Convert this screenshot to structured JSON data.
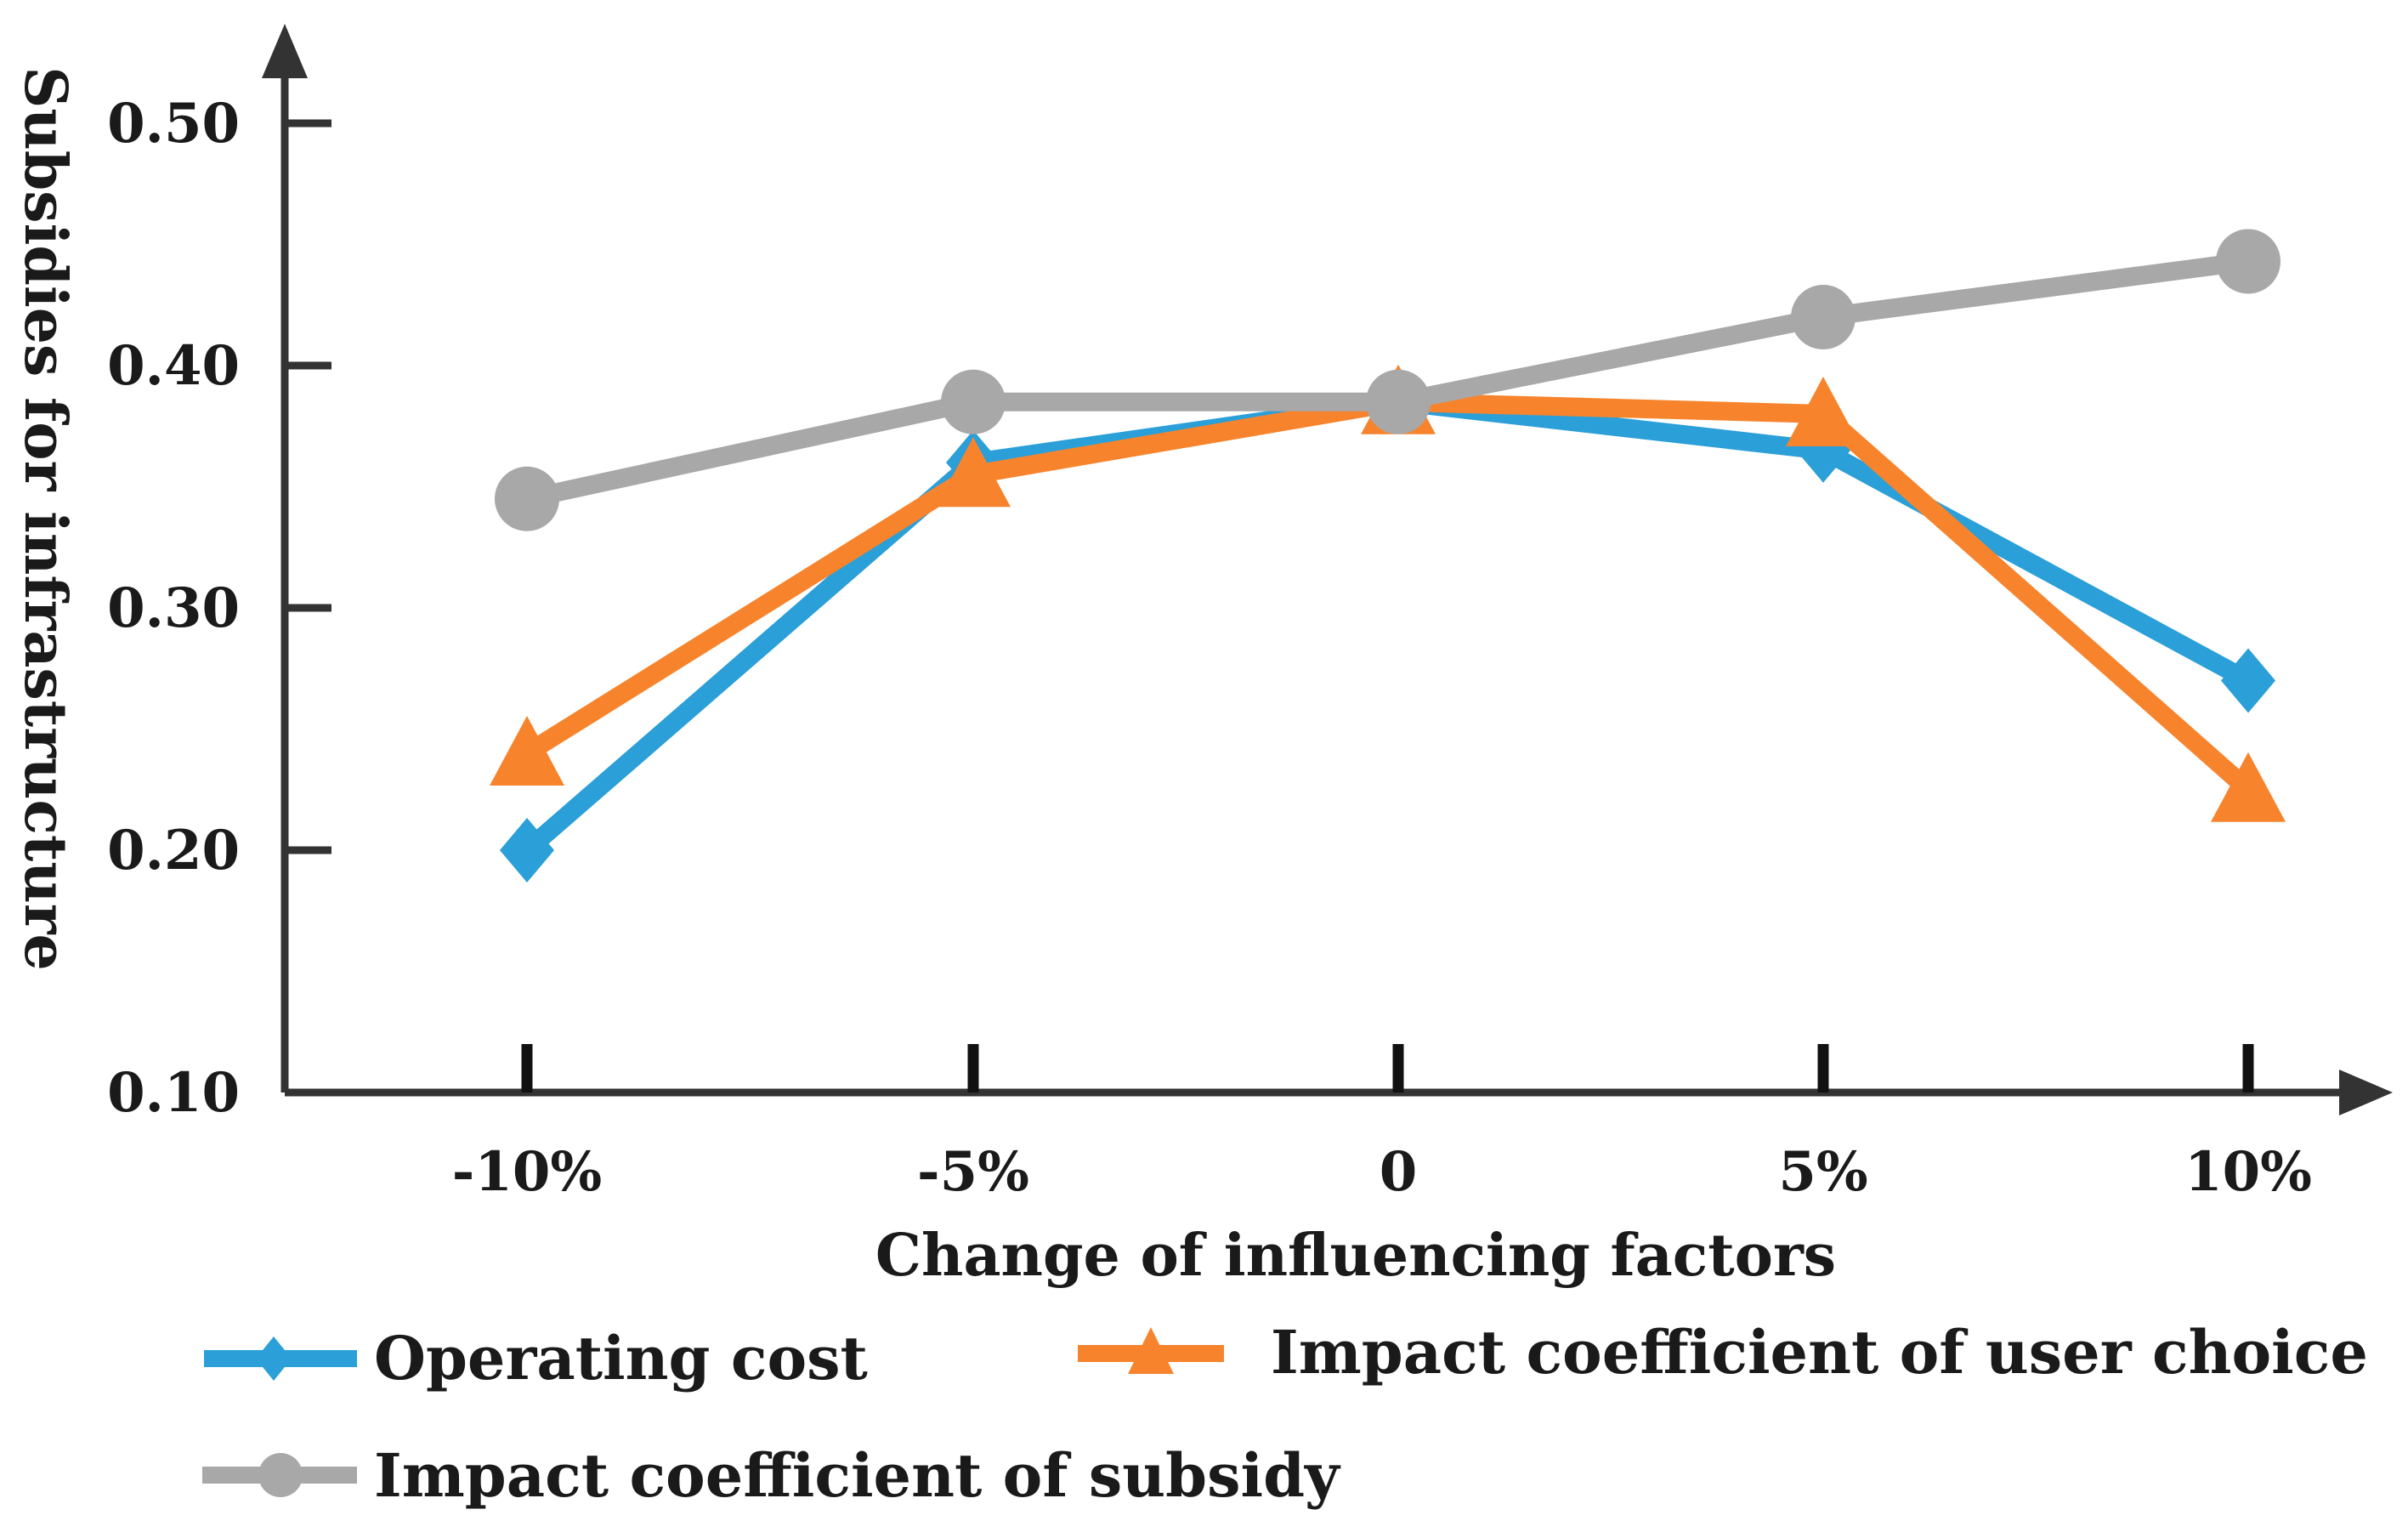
{
  "chart_data": {
    "type": "line",
    "title": "",
    "xlabel": "Change of influencing factors",
    "ylabel": "Subsidies for infrastructure",
    "categories": [
      "-10%",
      "-5%",
      "0",
      "5%",
      "10%"
    ],
    "ylim": [
      0.1,
      0.5
    ],
    "yticks": [
      "0.10",
      "0.20",
      "0.30",
      "0.40",
      "0.50"
    ],
    "ytick_values": [
      0.1,
      0.2,
      0.3,
      0.4,
      0.5
    ],
    "grid": false,
    "legend_position": "bottom",
    "series": [
      {
        "name": "Operating cost",
        "marker": "diamond",
        "color": "#2A9FD8",
        "values": [
          0.2,
          0.36,
          0.385,
          0.365,
          0.27
        ]
      },
      {
        "name": "Impact coefficient of user choice",
        "marker": "triangle",
        "color": "#F7842D",
        "values": [
          0.24,
          0.355,
          0.385,
          0.38,
          0.225
        ]
      },
      {
        "name": "Impact coefficient of subsidy",
        "marker": "circle",
        "color": "#A8A8A8",
        "values": [
          0.345,
          0.385,
          0.385,
          0.42,
          0.443
        ]
      }
    ]
  }
}
